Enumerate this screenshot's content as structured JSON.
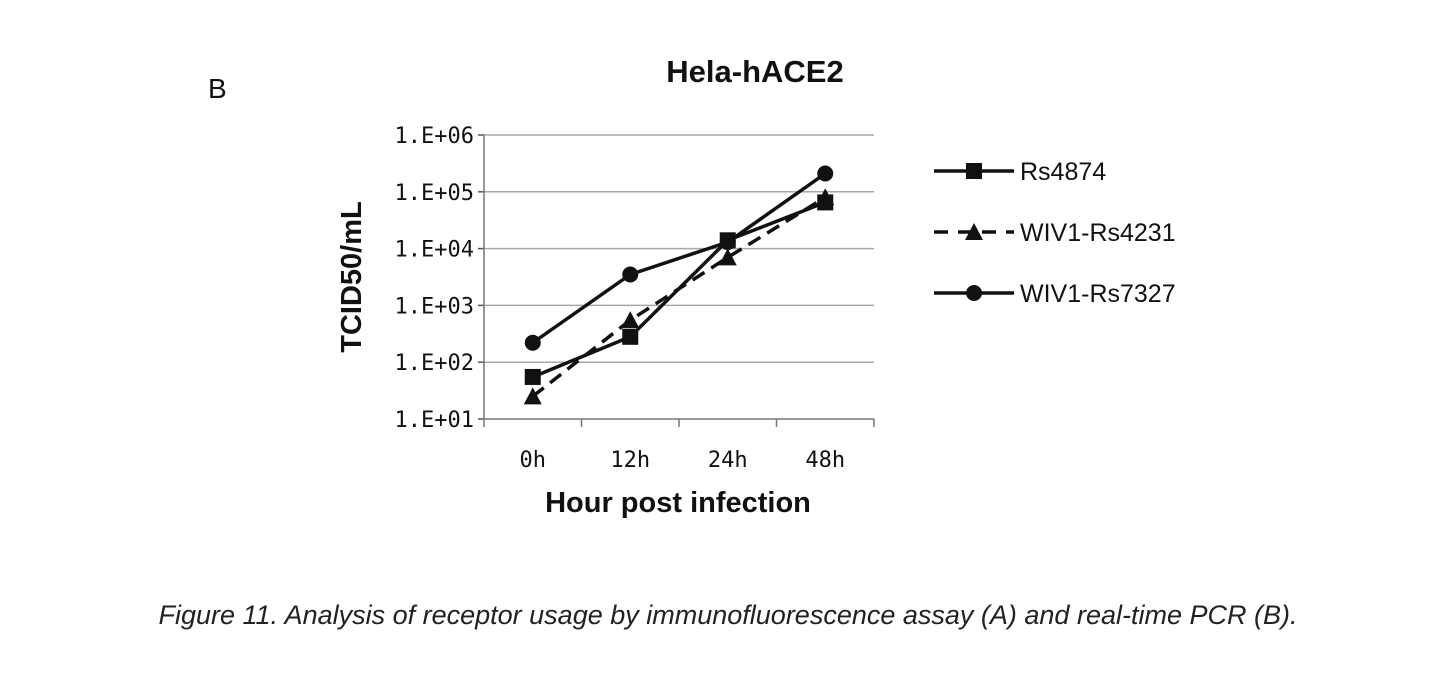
{
  "figure": {
    "panel_label": "B",
    "caption": "Figure 11. Analysis of receptor usage by immunofluorescence assay (A) and real-time PCR (B)."
  },
  "chart_data": {
    "type": "line",
    "title": "Hela-hACE2",
    "xlabel": "Hour post infection",
    "ylabel": "TCID50/mL",
    "y_scale": "log",
    "ylim": [
      10,
      1000000
    ],
    "y_ticks": [
      "1.E+01",
      "1.E+02",
      "1.E+03",
      "1.E+04",
      "1.E+05",
      "1.E+06"
    ],
    "categories": [
      "0h",
      "12h",
      "24h",
      "48h"
    ],
    "grid": "horizontal",
    "legend_position": "right",
    "series": [
      {
        "name": "Rs4874",
        "values": [
          55,
          280,
          14000,
          65000
        ],
        "marker": "square",
        "line": "solid",
        "color": "#111111"
      },
      {
        "name": "WIV1-Rs4231",
        "values": [
          25,
          550,
          7000,
          80000
        ],
        "marker": "triangle",
        "line": "dashed",
        "color": "#111111"
      },
      {
        "name": "WIV1-Rs7327",
        "values": [
          220,
          3500,
          13000,
          210000
        ],
        "marker": "circle",
        "line": "solid",
        "color": "#111111"
      }
    ]
  }
}
